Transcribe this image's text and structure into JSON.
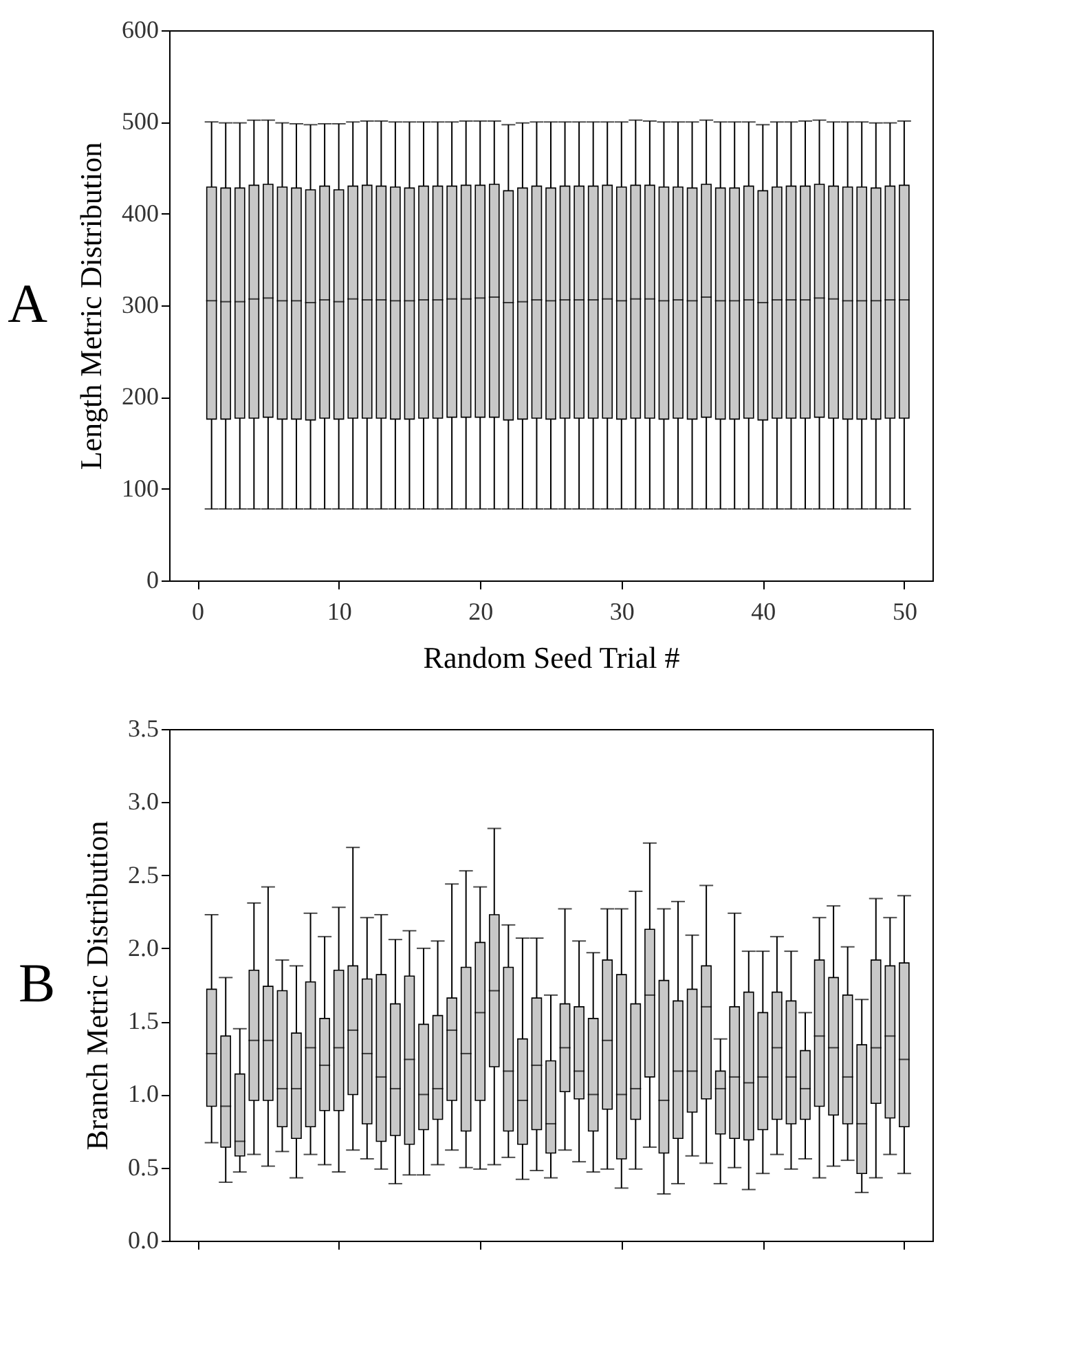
{
  "chart_data": [
    {
      "type": "box",
      "title": "A",
      "xlabel": "Random Seed Trial #",
      "ylabel": "Length Metric Distribution",
      "color": "#c8c8c8",
      "grid": false,
      "x": [
        1,
        2,
        3,
        4,
        5,
        6,
        7,
        8,
        9,
        10,
        11,
        12,
        13,
        14,
        15,
        16,
        17,
        18,
        19,
        20,
        21,
        22,
        23,
        24,
        25,
        26,
        27,
        28,
        29,
        30,
        31,
        32,
        33,
        34,
        35,
        36,
        37,
        38,
        39,
        40,
        41,
        42,
        43,
        44,
        45,
        46,
        47,
        48,
        49,
        50
      ],
      "xlim": [
        -2,
        52
      ],
      "xticks": [
        0,
        10,
        20,
        30,
        40,
        50
      ],
      "ylim": [
        0,
        600
      ],
      "yticks": [
        0,
        100,
        200,
        300,
        400,
        500,
        600
      ],
      "boxes": [
        {
          "low": 78,
          "q1": 176,
          "median": 305,
          "q3": 429,
          "high": 500
        },
        {
          "low": 78,
          "q1": 176,
          "median": 304,
          "q3": 428,
          "high": 499
        },
        {
          "low": 78,
          "q1": 177,
          "median": 304,
          "q3": 428,
          "high": 499
        },
        {
          "low": 78,
          "q1": 177,
          "median": 307,
          "q3": 431,
          "high": 502
        },
        {
          "low": 78,
          "q1": 178,
          "median": 308,
          "q3": 432,
          "high": 502
        },
        {
          "low": 78,
          "q1": 176,
          "median": 305,
          "q3": 429,
          "high": 499
        },
        {
          "low": 78,
          "q1": 176,
          "median": 305,
          "q3": 428,
          "high": 498
        },
        {
          "low": 78,
          "q1": 175,
          "median": 303,
          "q3": 426,
          "high": 497
        },
        {
          "low": 78,
          "q1": 177,
          "median": 306,
          "q3": 430,
          "high": 498
        },
        {
          "low": 78,
          "q1": 176,
          "median": 304,
          "q3": 426,
          "high": 498
        },
        {
          "low": 78,
          "q1": 177,
          "median": 307,
          "q3": 430,
          "high": 500
        },
        {
          "low": 78,
          "q1": 177,
          "median": 306,
          "q3": 431,
          "high": 501
        },
        {
          "low": 78,
          "q1": 177,
          "median": 306,
          "q3": 430,
          "high": 501
        },
        {
          "low": 78,
          "q1": 176,
          "median": 305,
          "q3": 429,
          "high": 500
        },
        {
          "low": 78,
          "q1": 176,
          "median": 305,
          "q3": 428,
          "high": 500
        },
        {
          "low": 78,
          "q1": 177,
          "median": 306,
          "q3": 430,
          "high": 500
        },
        {
          "low": 78,
          "q1": 177,
          "median": 306,
          "q3": 430,
          "high": 500
        },
        {
          "low": 78,
          "q1": 178,
          "median": 307,
          "q3": 430,
          "high": 500
        },
        {
          "low": 78,
          "q1": 178,
          "median": 307,
          "q3": 431,
          "high": 501
        },
        {
          "low": 78,
          "q1": 178,
          "median": 308,
          "q3": 431,
          "high": 501
        },
        {
          "low": 78,
          "q1": 178,
          "median": 309,
          "q3": 432,
          "high": 501
        },
        {
          "low": 78,
          "q1": 175,
          "median": 303,
          "q3": 425,
          "high": 497
        },
        {
          "low": 78,
          "q1": 176,
          "median": 304,
          "q3": 428,
          "high": 499
        },
        {
          "low": 78,
          "q1": 177,
          "median": 306,
          "q3": 430,
          "high": 500
        },
        {
          "low": 78,
          "q1": 176,
          "median": 305,
          "q3": 428,
          "high": 500
        },
        {
          "low": 78,
          "q1": 177,
          "median": 306,
          "q3": 430,
          "high": 500
        },
        {
          "low": 78,
          "q1": 177,
          "median": 306,
          "q3": 430,
          "high": 500
        },
        {
          "low": 78,
          "q1": 177,
          "median": 306,
          "q3": 430,
          "high": 500
        },
        {
          "low": 78,
          "q1": 177,
          "median": 307,
          "q3": 431,
          "high": 500
        },
        {
          "low": 78,
          "q1": 176,
          "median": 305,
          "q3": 429,
          "high": 500
        },
        {
          "low": 78,
          "q1": 177,
          "median": 307,
          "q3": 431,
          "high": 502
        },
        {
          "low": 78,
          "q1": 177,
          "median": 307,
          "q3": 431,
          "high": 501
        },
        {
          "low": 78,
          "q1": 176,
          "median": 305,
          "q3": 429,
          "high": 500
        },
        {
          "low": 78,
          "q1": 177,
          "median": 306,
          "q3": 429,
          "high": 500
        },
        {
          "low": 78,
          "q1": 176,
          "median": 305,
          "q3": 428,
          "high": 500
        },
        {
          "low": 78,
          "q1": 178,
          "median": 309,
          "q3": 432,
          "high": 502
        },
        {
          "low": 78,
          "q1": 176,
          "median": 305,
          "q3": 428,
          "high": 500
        },
        {
          "low": 78,
          "q1": 176,
          "median": 305,
          "q3": 428,
          "high": 500
        },
        {
          "low": 78,
          "q1": 177,
          "median": 306,
          "q3": 430,
          "high": 500
        },
        {
          "low": 78,
          "q1": 175,
          "median": 303,
          "q3": 425,
          "high": 497
        },
        {
          "low": 78,
          "q1": 177,
          "median": 306,
          "q3": 429,
          "high": 500
        },
        {
          "low": 78,
          "q1": 177,
          "median": 306,
          "q3": 430,
          "high": 500
        },
        {
          "low": 78,
          "q1": 177,
          "median": 306,
          "q3": 430,
          "high": 501
        },
        {
          "low": 78,
          "q1": 178,
          "median": 308,
          "q3": 432,
          "high": 502
        },
        {
          "low": 78,
          "q1": 177,
          "median": 307,
          "q3": 430,
          "high": 500
        },
        {
          "low": 78,
          "q1": 176,
          "median": 305,
          "q3": 429,
          "high": 500
        },
        {
          "low": 78,
          "q1": 176,
          "median": 305,
          "q3": 429,
          "high": 500
        },
        {
          "low": 78,
          "q1": 176,
          "median": 305,
          "q3": 428,
          "high": 499
        },
        {
          "low": 78,
          "q1": 177,
          "median": 306,
          "q3": 430,
          "high": 499
        },
        {
          "low": 78,
          "q1": 177,
          "median": 306,
          "q3": 431,
          "high": 501
        }
      ]
    },
    {
      "type": "box",
      "title": "B",
      "ylabel": "Branch Metric Distribution",
      "color": "#c8c8c8",
      "grid": false,
      "tick_labels": "y",
      "x": [
        1,
        2,
        3,
        4,
        5,
        6,
        7,
        8,
        9,
        10,
        11,
        12,
        13,
        14,
        15,
        16,
        17,
        18,
        19,
        20,
        21,
        22,
        23,
        24,
        25,
        26,
        27,
        28,
        29,
        30,
        31,
        32,
        33,
        34,
        35,
        36,
        37,
        38,
        39,
        40,
        41,
        42,
        43,
        44,
        45,
        46,
        47,
        48,
        49,
        50
      ],
      "xlim": [
        -2,
        52
      ],
      "xticks": [
        0,
        10,
        20,
        30,
        40,
        50
      ],
      "ylim": [
        0,
        3.5
      ],
      "yticks": [
        {
          "value": 0,
          "label": "0.0"
        },
        {
          "value": 0.5,
          "label": "0.5"
        },
        {
          "value": 1,
          "label": "1.0"
        },
        {
          "value": 1.5,
          "label": "1.5"
        },
        {
          "value": 2,
          "label": "2.0"
        },
        {
          "value": 2.5,
          "label": "2.5"
        },
        {
          "value": 3,
          "label": "3.0"
        },
        {
          "value": 3.5,
          "label": "3.5"
        }
      ],
      "boxes": [
        {
          "low": 0.67,
          "q1": 0.92,
          "median": 1.28,
          "q3": 1.72,
          "high": 2.23
        },
        {
          "low": 0.4,
          "q1": 0.64,
          "median": 0.92,
          "q3": 1.4,
          "high": 1.8
        },
        {
          "low": 0.47,
          "q1": 0.58,
          "median": 0.68,
          "q3": 1.14,
          "high": 1.45
        },
        {
          "low": 0.59,
          "q1": 0.96,
          "median": 1.37,
          "q3": 1.85,
          "high": 2.31
        },
        {
          "low": 0.51,
          "q1": 0.96,
          "median": 1.37,
          "q3": 1.74,
          "high": 2.42
        },
        {
          "low": 0.61,
          "q1": 0.78,
          "median": 1.04,
          "q3": 1.71,
          "high": 1.92
        },
        {
          "low": 0.43,
          "q1": 0.7,
          "median": 1.04,
          "q3": 1.42,
          "high": 1.88
        },
        {
          "low": 0.59,
          "q1": 0.78,
          "median": 1.32,
          "q3": 1.77,
          "high": 2.24
        },
        {
          "low": 0.52,
          "q1": 0.89,
          "median": 1.2,
          "q3": 1.52,
          "high": 2.08
        },
        {
          "low": 0.47,
          "q1": 0.89,
          "median": 1.32,
          "q3": 1.85,
          "high": 2.28
        },
        {
          "low": 0.62,
          "q1": 1.0,
          "median": 1.44,
          "q3": 1.88,
          "high": 2.69
        },
        {
          "low": 0.56,
          "q1": 0.8,
          "median": 1.28,
          "q3": 1.79,
          "high": 2.21
        },
        {
          "low": 0.49,
          "q1": 0.68,
          "median": 1.12,
          "q3": 1.82,
          "high": 2.23
        },
        {
          "low": 0.39,
          "q1": 0.72,
          "median": 1.04,
          "q3": 1.62,
          "high": 2.06
        },
        {
          "low": 0.45,
          "q1": 0.66,
          "median": 1.24,
          "q3": 1.81,
          "high": 2.12
        },
        {
          "low": 0.45,
          "q1": 0.76,
          "median": 1.0,
          "q3": 1.48,
          "high": 2.0
        },
        {
          "low": 0.52,
          "q1": 0.83,
          "median": 1.04,
          "q3": 1.54,
          "high": 2.05
        },
        {
          "low": 0.62,
          "q1": 0.96,
          "median": 1.44,
          "q3": 1.66,
          "high": 2.44
        },
        {
          "low": 0.5,
          "q1": 0.75,
          "median": 1.28,
          "q3": 1.87,
          "high": 2.53
        },
        {
          "low": 0.49,
          "q1": 0.96,
          "median": 1.56,
          "q3": 2.04,
          "high": 2.42
        },
        {
          "low": 0.52,
          "q1": 1.19,
          "median": 1.71,
          "q3": 2.23,
          "high": 2.82
        },
        {
          "low": 0.57,
          "q1": 0.75,
          "median": 1.16,
          "q3": 1.87,
          "high": 2.16
        },
        {
          "low": 0.42,
          "q1": 0.66,
          "median": 0.96,
          "q3": 1.38,
          "high": 2.07
        },
        {
          "low": 0.48,
          "q1": 0.76,
          "median": 1.2,
          "q3": 1.66,
          "high": 2.07
        },
        {
          "low": 0.43,
          "q1": 0.6,
          "median": 0.8,
          "q3": 1.23,
          "high": 1.68
        },
        {
          "low": 0.62,
          "q1": 1.02,
          "median": 1.32,
          "q3": 1.62,
          "high": 2.27
        },
        {
          "low": 0.54,
          "q1": 0.97,
          "median": 1.16,
          "q3": 1.6,
          "high": 2.05
        },
        {
          "low": 0.47,
          "q1": 0.75,
          "median": 1.0,
          "q3": 1.52,
          "high": 1.97
        },
        {
          "low": 0.49,
          "q1": 0.9,
          "median": 1.37,
          "q3": 1.92,
          "high": 2.27
        },
        {
          "low": 0.36,
          "q1": 0.56,
          "median": 1.0,
          "q3": 1.82,
          "high": 2.27
        },
        {
          "low": 0.49,
          "q1": 0.83,
          "median": 1.04,
          "q3": 1.62,
          "high": 2.39
        },
        {
          "low": 0.64,
          "q1": 1.12,
          "median": 1.68,
          "q3": 2.13,
          "high": 2.72
        },
        {
          "low": 0.32,
          "q1": 0.6,
          "median": 0.96,
          "q3": 1.78,
          "high": 2.27
        },
        {
          "low": 0.39,
          "q1": 0.7,
          "median": 1.16,
          "q3": 1.64,
          "high": 2.32
        },
        {
          "low": 0.58,
          "q1": 0.88,
          "median": 1.16,
          "q3": 1.72,
          "high": 2.09
        },
        {
          "low": 0.53,
          "q1": 0.97,
          "median": 1.6,
          "q3": 1.88,
          "high": 2.43
        },
        {
          "low": 0.39,
          "q1": 0.73,
          "median": 1.04,
          "q3": 1.16,
          "high": 1.38
        },
        {
          "low": 0.5,
          "q1": 0.7,
          "median": 1.12,
          "q3": 1.6,
          "high": 2.24
        },
        {
          "low": 0.35,
          "q1": 0.69,
          "median": 1.08,
          "q3": 1.7,
          "high": 1.98
        },
        {
          "low": 0.46,
          "q1": 0.76,
          "median": 1.12,
          "q3": 1.56,
          "high": 1.98
        },
        {
          "low": 0.59,
          "q1": 0.83,
          "median": 1.32,
          "q3": 1.7,
          "high": 2.08
        },
        {
          "low": 0.49,
          "q1": 0.8,
          "median": 1.12,
          "q3": 1.64,
          "high": 1.98
        },
        {
          "low": 0.56,
          "q1": 0.83,
          "median": 1.04,
          "q3": 1.3,
          "high": 1.56
        },
        {
          "low": 0.43,
          "q1": 0.92,
          "median": 1.4,
          "q3": 1.92,
          "high": 2.21
        },
        {
          "low": 0.51,
          "q1": 0.86,
          "median": 1.32,
          "q3": 1.8,
          "high": 2.29
        },
        {
          "low": 0.55,
          "q1": 0.8,
          "median": 1.12,
          "q3": 1.68,
          "high": 2.01
        },
        {
          "low": 0.33,
          "q1": 0.46,
          "median": 0.8,
          "q3": 1.34,
          "high": 1.65
        },
        {
          "low": 0.43,
          "q1": 0.94,
          "median": 1.32,
          "q3": 1.92,
          "high": 2.34
        },
        {
          "low": 0.59,
          "q1": 0.84,
          "median": 1.4,
          "q3": 1.88,
          "high": 2.21
        },
        {
          "low": 0.46,
          "q1": 0.78,
          "median": 1.24,
          "q3": 1.9,
          "high": 2.36
        }
      ]
    }
  ]
}
